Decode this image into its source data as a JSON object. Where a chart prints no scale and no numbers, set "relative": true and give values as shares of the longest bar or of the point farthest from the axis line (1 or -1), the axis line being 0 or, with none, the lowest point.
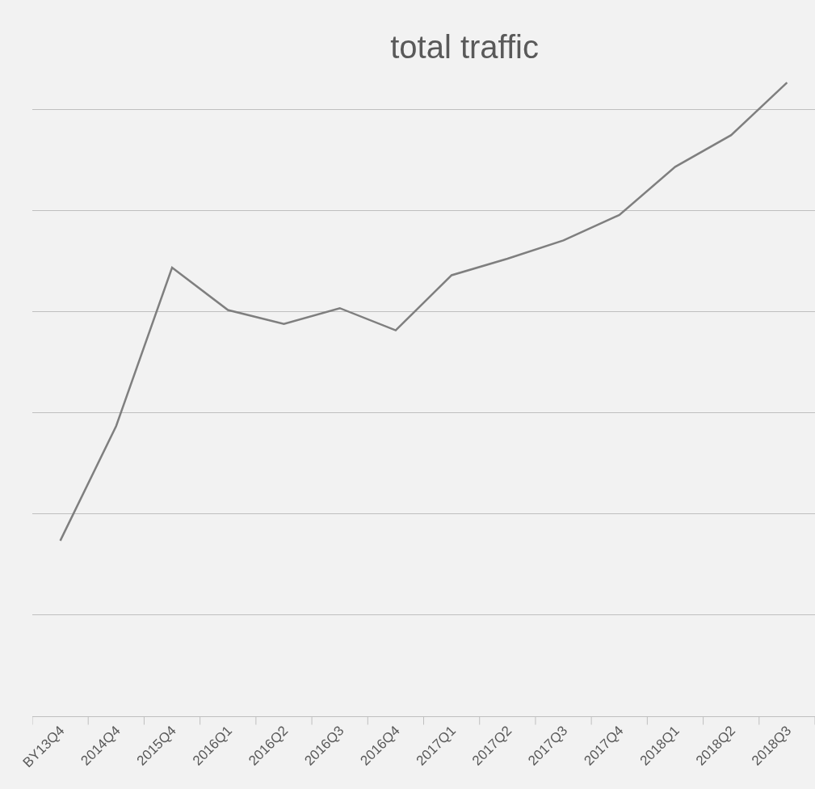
{
  "chart_data": {
    "type": "line",
    "title": "total traffic",
    "relative": true,
    "grid": "y",
    "color": "#7f7f7f",
    "categories": [
      "BY13Q4",
      "2014Q4",
      "2015Q4",
      "2016Q1",
      "2016Q2",
      "2016Q3",
      "2016Q4",
      "2017Q1",
      "2017Q2",
      "2017Q3",
      "2017Q4",
      "2018Q1",
      "2018Q2",
      "2018Q3"
    ],
    "values": [
      0.277,
      0.458,
      0.708,
      0.641,
      0.619,
      0.644,
      0.609,
      0.696,
      0.722,
      0.751,
      0.791,
      0.867,
      0.917,
      1
    ]
  }
}
